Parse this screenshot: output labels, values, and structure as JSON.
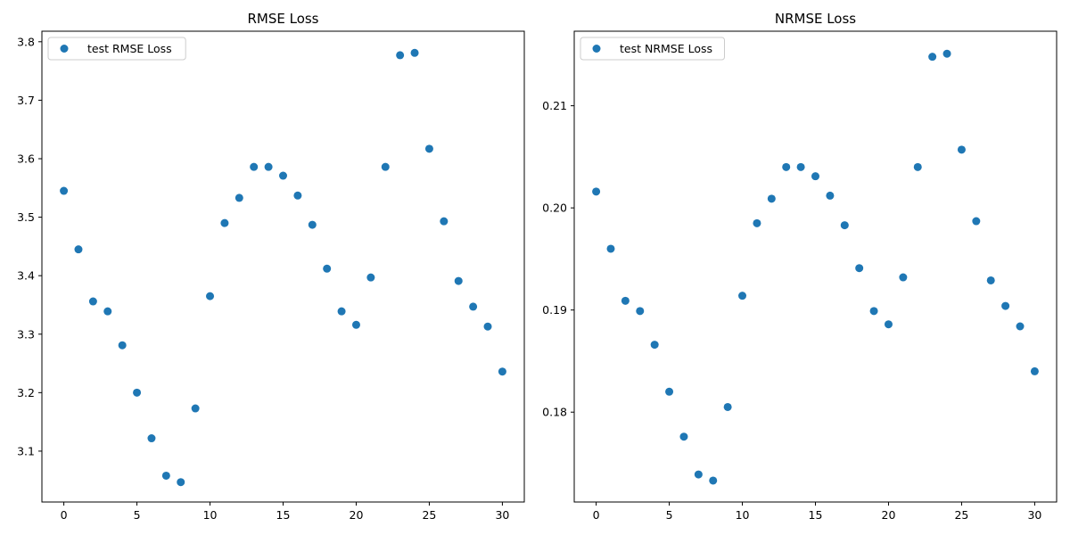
{
  "chart_data": [
    {
      "type": "scatter",
      "title": "RMSE Loss",
      "xlabel": "",
      "ylabel": "",
      "xlim": [
        -1.5,
        31.5
      ],
      "ylim": [
        3.013,
        3.818
      ],
      "x_ticks": [
        0,
        5,
        10,
        15,
        20,
        25,
        30
      ],
      "x_tick_labels": [
        "0",
        "5",
        "10",
        "15",
        "20",
        "25",
        "30"
      ],
      "y_ticks": [
        3.1,
        3.2,
        3.3,
        3.4,
        3.5,
        3.6,
        3.7,
        3.8
      ],
      "y_tick_labels": [
        "3.1",
        "3.2",
        "3.3",
        "3.4",
        "3.5",
        "3.6",
        "3.7",
        "3.8"
      ],
      "grid": false,
      "legend_position": "top-left",
      "series": [
        {
          "name": "test RMSE Loss",
          "color": "#1f77b4",
          "x": [
            0,
            1,
            2,
            3,
            4,
            5,
            6,
            7,
            8,
            9,
            10,
            11,
            12,
            13,
            14,
            15,
            16,
            17,
            18,
            19,
            20,
            21,
            22,
            23,
            24,
            25,
            26,
            27,
            28,
            29,
            30
          ],
          "y": [
            3.545,
            3.445,
            3.356,
            3.339,
            3.281,
            3.2,
            3.122,
            3.058,
            3.047,
            3.173,
            3.365,
            3.49,
            3.533,
            3.586,
            3.586,
            3.571,
            3.537,
            3.487,
            3.412,
            3.339,
            3.316,
            3.397,
            3.586,
            3.777,
            3.781,
            3.617,
            3.493,
            3.391,
            3.347,
            3.313,
            3.236
          ]
        }
      ]
    },
    {
      "type": "scatter",
      "title": "NRMSE Loss",
      "xlabel": "",
      "ylabel": "",
      "xlim": [
        -1.5,
        31.5
      ],
      "ylim": [
        0.1712,
        0.2173
      ],
      "x_ticks": [
        0,
        5,
        10,
        15,
        20,
        25,
        30
      ],
      "x_tick_labels": [
        "0",
        "5",
        "10",
        "15",
        "20",
        "25",
        "30"
      ],
      "y_ticks": [
        0.18,
        0.19,
        0.2,
        0.21
      ],
      "y_tick_labels": [
        "0.18",
        "0.19",
        "0.20",
        "0.21"
      ],
      "grid": false,
      "legend_position": "top-left",
      "series": [
        {
          "name": "test NRMSE Loss",
          "color": "#1f77b4",
          "x": [
            0,
            1,
            2,
            3,
            4,
            5,
            6,
            7,
            8,
            9,
            10,
            11,
            12,
            13,
            14,
            15,
            16,
            17,
            18,
            19,
            20,
            21,
            22,
            23,
            24,
            25,
            26,
            27,
            28,
            29,
            30
          ],
          "y": [
            0.2016,
            0.196,
            0.1909,
            0.1899,
            0.1866,
            0.182,
            0.1776,
            0.1739,
            0.1733,
            0.1805,
            0.1914,
            0.1985,
            0.2009,
            0.204,
            0.204,
            0.2031,
            0.2012,
            0.1983,
            0.1941,
            0.1899,
            0.1886,
            0.1932,
            0.204,
            0.2148,
            0.2151,
            0.2057,
            0.1987,
            0.1929,
            0.1904,
            0.1884,
            0.184
          ]
        }
      ]
    }
  ]
}
